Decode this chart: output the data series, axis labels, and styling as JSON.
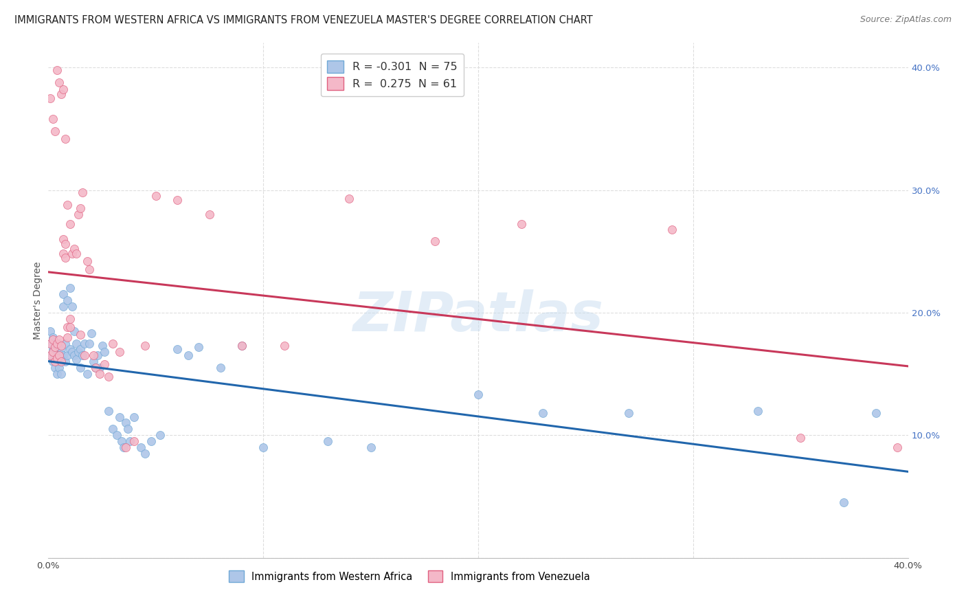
{
  "title": "IMMIGRANTS FROM WESTERN AFRICA VS IMMIGRANTS FROM VENEZUELA MASTER'S DEGREE CORRELATION CHART",
  "source": "Source: ZipAtlas.com",
  "ylabel": "Master's Degree",
  "xlim": [
    0.0,
    0.4
  ],
  "ylim": [
    0.0,
    0.42
  ],
  "xticks": [
    0.0,
    0.1,
    0.2,
    0.3,
    0.4
  ],
  "xticklabels": [
    "0.0%",
    "",
    "",
    "",
    "40.0%"
  ],
  "right_yticks": [
    0.0,
    0.1,
    0.2,
    0.3,
    0.4
  ],
  "right_yticklabels": [
    "",
    "10.0%",
    "20.0%",
    "30.0%",
    "40.0%"
  ],
  "series_blue": {
    "name": "Immigrants from Western Africa",
    "color": "#aec6e8",
    "edge_color": "#6fa8d6",
    "line_color": "#2166ac",
    "R": -0.301,
    "N": 75,
    "x": [
      0.001,
      0.001,
      0.001,
      0.002,
      0.002,
      0.002,
      0.003,
      0.003,
      0.003,
      0.004,
      0.004,
      0.004,
      0.005,
      0.005,
      0.005,
      0.006,
      0.006,
      0.006,
      0.007,
      0.007,
      0.007,
      0.008,
      0.008,
      0.009,
      0.009,
      0.01,
      0.01,
      0.011,
      0.011,
      0.012,
      0.012,
      0.013,
      0.013,
      0.014,
      0.015,
      0.015,
      0.016,
      0.017,
      0.018,
      0.019,
      0.02,
      0.021,
      0.022,
      0.023,
      0.024,
      0.025,
      0.026,
      0.028,
      0.03,
      0.032,
      0.033,
      0.034,
      0.035,
      0.036,
      0.037,
      0.038,
      0.04,
      0.043,
      0.045,
      0.048,
      0.052,
      0.06,
      0.065,
      0.07,
      0.08,
      0.09,
      0.1,
      0.13,
      0.15,
      0.2,
      0.23,
      0.27,
      0.33,
      0.37,
      0.385
    ],
    "y": [
      0.185,
      0.175,
      0.165,
      0.18,
      0.17,
      0.16,
      0.175,
      0.165,
      0.155,
      0.17,
      0.16,
      0.15,
      0.175,
      0.165,
      0.155,
      0.17,
      0.16,
      0.15,
      0.215,
      0.205,
      0.165,
      0.175,
      0.16,
      0.21,
      0.165,
      0.22,
      0.17,
      0.205,
      0.168,
      0.185,
      0.165,
      0.175,
      0.162,
      0.168,
      0.17,
      0.155,
      0.165,
      0.175,
      0.15,
      0.175,
      0.183,
      0.16,
      0.155,
      0.165,
      0.155,
      0.173,
      0.168,
      0.12,
      0.105,
      0.1,
      0.115,
      0.095,
      0.09,
      0.11,
      0.105,
      0.095,
      0.115,
      0.09,
      0.085,
      0.095,
      0.1,
      0.17,
      0.165,
      0.172,
      0.155,
      0.173,
      0.09,
      0.095,
      0.09,
      0.133,
      0.118,
      0.118,
      0.12,
      0.045,
      0.118
    ]
  },
  "series_pink": {
    "name": "Immigrants from Venezuela",
    "color": "#f4b8c8",
    "edge_color": "#e06080",
    "line_color": "#c8385a",
    "R": 0.275,
    "N": 61,
    "x": [
      0.001,
      0.001,
      0.002,
      0.002,
      0.003,
      0.003,
      0.004,
      0.004,
      0.005,
      0.005,
      0.006,
      0.006,
      0.007,
      0.007,
      0.008,
      0.008,
      0.009,
      0.009,
      0.01,
      0.01,
      0.011,
      0.012,
      0.013,
      0.014,
      0.015,
      0.016,
      0.017,
      0.018,
      0.019,
      0.021,
      0.022,
      0.024,
      0.026,
      0.028,
      0.03,
      0.033,
      0.036,
      0.04,
      0.045,
      0.05,
      0.06,
      0.075,
      0.09,
      0.11,
      0.14,
      0.18,
      0.22,
      0.29,
      0.35,
      0.395,
      0.001,
      0.002,
      0.003,
      0.004,
      0.005,
      0.006,
      0.007,
      0.008,
      0.009,
      0.01,
      0.015
    ],
    "y": [
      0.175,
      0.165,
      0.178,
      0.168,
      0.172,
      0.16,
      0.175,
      0.163,
      0.178,
      0.165,
      0.173,
      0.16,
      0.26,
      0.248,
      0.256,
      0.245,
      0.18,
      0.188,
      0.195,
      0.188,
      0.248,
      0.252,
      0.248,
      0.28,
      0.285,
      0.298,
      0.165,
      0.242,
      0.235,
      0.165,
      0.155,
      0.15,
      0.158,
      0.148,
      0.175,
      0.168,
      0.09,
      0.095,
      0.173,
      0.295,
      0.292,
      0.28,
      0.173,
      0.173,
      0.293,
      0.258,
      0.272,
      0.268,
      0.098,
      0.09,
      0.375,
      0.358,
      0.348,
      0.398,
      0.388,
      0.378,
      0.382,
      0.342,
      0.288,
      0.272,
      0.182
    ]
  },
  "watermark": "ZIPatlas",
  "watermark_color": "#c8ddf0",
  "watermark_alpha": 0.5,
  "background_color": "#ffffff",
  "grid_color": "#dddddd",
  "title_fontsize": 10.5,
  "legend_r_color": "#d63d6e",
  "legend_n_color": "#4472c4"
}
